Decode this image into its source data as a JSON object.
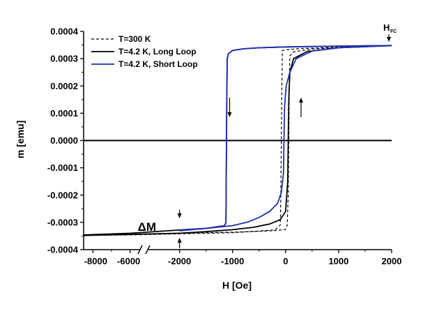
{
  "chart_data": {
    "type": "line",
    "title": "",
    "xlabel": "H [Oe]",
    "ylabel": "m [emu]",
    "x_axis": {
      "broken": true,
      "segment_left_range": [
        -8500,
        -5500
      ],
      "segment_right_range": [
        -2600,
        2000
      ],
      "ticks": [
        -8000,
        -6000,
        -2000,
        -1000,
        0,
        1000,
        2000
      ],
      "tick_labels": [
        "-8000",
        "-6000",
        "-2000",
        "-1000",
        "0",
        "1000",
        "2000"
      ]
    },
    "y_axis": {
      "range": [
        -0.0004,
        0.0004
      ],
      "ticks": [
        -0.0004,
        -0.0003,
        -0.0002,
        -0.0001,
        0,
        0.0001,
        0.0002,
        0.0003,
        0.0004
      ],
      "tick_labels": [
        "-0.0004",
        "-0.0003",
        "-0.0002",
        "-0.0001",
        "0.0000",
        "0.0001",
        "0.0002",
        "0.0003",
        "0.0004"
      ]
    },
    "grid": false,
    "legend_position": "top-left",
    "series": [
      {
        "name": "T=300 K",
        "color": "#000000",
        "style": "dashed",
        "branches": [
          [
            [
              -8500,
              -0.000348
            ],
            [
              -6000,
              -0.000345
            ],
            [
              -2000,
              -0.00034
            ],
            [
              -1000,
              -0.000336
            ],
            [
              -500,
              -0.000333
            ],
            [
              -200,
              -0.00033
            ],
            [
              0,
              -0.000326
            ],
            [
              30,
              -0.00031
            ],
            [
              50,
              -0.0002
            ],
            [
              60,
              0
            ],
            [
              70,
              0.0002
            ],
            [
              80,
              0.00031
            ],
            [
              150,
              0.000325
            ],
            [
              500,
              0.000335
            ],
            [
              1000,
              0.000341
            ],
            [
              2000,
              0.000347
            ]
          ],
          [
            [
              2000,
              0.000347
            ],
            [
              1000,
              0.000342
            ],
            [
              200,
              0.000336
            ],
            [
              0,
              0.000332
            ],
            [
              -60,
              0.00033
            ],
            [
              -70,
              0.0002
            ],
            [
              -80,
              0
            ],
            [
              -90,
              -0.0002
            ],
            [
              -100,
              -0.00031
            ],
            [
              -200,
              -0.000328
            ],
            [
              -1000,
              -0.000338
            ],
            [
              -2000,
              -0.000342
            ],
            [
              -6000,
              -0.000346
            ],
            [
              -8500,
              -0.000348
            ]
          ]
        ]
      },
      {
        "name": "T=4.2 K, Long Loop",
        "color": "#000000",
        "style": "solid",
        "branches": [
          [
            [
              -8500,
              -0.000348
            ],
            [
              -6000,
              -0.000344
            ],
            [
              -2000,
              -0.00034
            ],
            [
              -1500,
              -0.000334
            ],
            [
              -1000,
              -0.000327
            ],
            [
              -600,
              -0.000318
            ],
            [
              -300,
              -0.000306
            ],
            [
              -100,
              -0.00029
            ],
            [
              0,
              -0.00026
            ],
            [
              40,
              -0.00015
            ],
            [
              50,
              0
            ],
            [
              60,
              0.00015
            ],
            [
              80,
              0.00025
            ],
            [
              150,
              0.0003
            ],
            [
              400,
              0.000326
            ],
            [
              1000,
              0.00034
            ],
            [
              2000,
              0.000348
            ]
          ],
          [
            [
              2000,
              0.000348
            ],
            [
              1000,
              0.000346
            ],
            [
              0,
              0.000343
            ],
            [
              -500,
              0.00034
            ],
            [
              -800,
              0.000336
            ],
            [
              -1000,
              0.00033
            ],
            [
              -1080,
              0.000318
            ],
            [
              -1100,
              0.0003
            ],
            [
              -1110,
              0.00015
            ],
            [
              -1115,
              0
            ],
            [
              -1120,
              -0.00015
            ],
            [
              -1125,
              -0.0003
            ],
            [
              -1150,
              -0.000312
            ],
            [
              -1500,
              -0.000322
            ],
            [
              -2000,
              -0.000328
            ],
            [
              -6000,
              -0.00034
            ],
            [
              -8500,
              -0.000346
            ]
          ]
        ]
      },
      {
        "name": "T=4.2 K, Short Loop",
        "color": "#1f2fb0",
        "style": "solid",
        "branches": [
          [
            [
              -2000,
              -0.000331
            ],
            [
              -1500,
              -0.000322
            ],
            [
              -1000,
              -0.000312
            ],
            [
              -700,
              -0.000298
            ],
            [
              -500,
              -0.000282
            ],
            [
              -300,
              -0.00026
            ],
            [
              -150,
              -0.00023
            ],
            [
              -80,
              -0.00019
            ],
            [
              -40,
              -0.00012
            ],
            [
              -30,
              0
            ],
            [
              -20,
              0.00012
            ],
            [
              10,
              0.0002
            ],
            [
              80,
              0.00025
            ],
            [
              200,
              0.0003
            ],
            [
              500,
              0.000328
            ],
            [
              1000,
              0.00034
            ],
            [
              2000,
              0.000348
            ]
          ],
          [
            [
              2000,
              0.000348
            ],
            [
              1000,
              0.000346
            ],
            [
              0,
              0.000343
            ],
            [
              -500,
              0.00034
            ],
            [
              -800,
              0.000336
            ],
            [
              -1000,
              0.00033
            ],
            [
              -1080,
              0.000318
            ],
            [
              -1100,
              0.0003
            ],
            [
              -1110,
              0.00015
            ],
            [
              -1115,
              0
            ],
            [
              -1120,
              -0.00015
            ],
            [
              -1125,
              -0.0003
            ],
            [
              -1150,
              -0.000312
            ],
            [
              -1500,
              -0.000322
            ],
            [
              -2000,
              -0.000329
            ]
          ]
        ]
      }
    ],
    "annotations": [
      {
        "text": "H",
        "subscript": "FC",
        "arrow": "down",
        "at": [
          2000,
          0.00035
        ]
      },
      {
        "text": "ΔM",
        "arrows": "pointing between curves",
        "at": [
          -2000,
          -0.00033
        ]
      },
      {
        "arrow": "down",
        "at": [
          -1240,
          -7e-05
        ]
      },
      {
        "arrow": "up",
        "at": [
          160,
          7e-05
        ]
      }
    ]
  }
}
